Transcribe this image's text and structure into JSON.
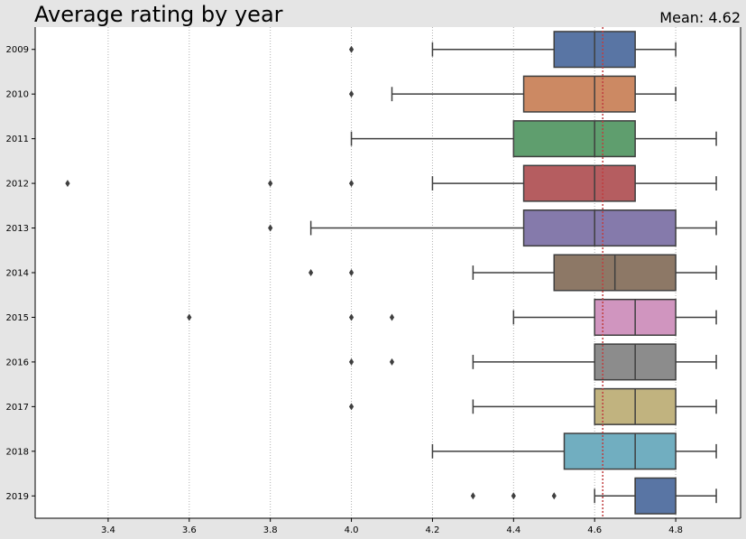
{
  "chart_data": {
    "type": "boxplot",
    "orientation": "horizontal",
    "title": "Average rating by year",
    "mean_label": "Mean: 4.62",
    "mean_value": 4.62,
    "xlabel": "",
    "ylabel": "",
    "xlim": [
      3.22,
      4.96
    ],
    "xticks": [
      3.4,
      3.6,
      3.8,
      4.0,
      4.2,
      4.4,
      4.6,
      4.8
    ],
    "xtick_labels": [
      "3.4",
      "3.6",
      "3.8",
      "4.0",
      "4.2",
      "4.4",
      "4.6",
      "4.8"
    ],
    "grid": "vertical dotted",
    "colors": {
      "background": "#e5e5e5",
      "plot_background": "#ffffff",
      "mean_line": "#c03d3e",
      "edge": "#3f3f3f",
      "grid": "#b0b0b0"
    },
    "categories": [
      "2009",
      "2010",
      "2011",
      "2012",
      "2013",
      "2014",
      "2015",
      "2016",
      "2017",
      "2018",
      "2019"
    ],
    "boxes": [
      {
        "year": "2009",
        "whisker_low": 4.2,
        "q1": 4.5,
        "median": 4.6,
        "q3": 4.7,
        "whisker_high": 4.8,
        "outliers": [
          4.0
        ],
        "color": "#5975a4"
      },
      {
        "year": "2010",
        "whisker_low": 4.1,
        "q1": 4.425,
        "median": 4.6,
        "q3": 4.7,
        "whisker_high": 4.8,
        "outliers": [
          4.0
        ],
        "color": "#cc8963"
      },
      {
        "year": "2011",
        "whisker_low": 4.0,
        "q1": 4.4,
        "median": 4.6,
        "q3": 4.7,
        "whisker_high": 4.9,
        "outliers": [],
        "color": "#5f9e6e"
      },
      {
        "year": "2012",
        "whisker_low": 4.2,
        "q1": 4.425,
        "median": 4.6,
        "q3": 4.7,
        "whisker_high": 4.9,
        "outliers": [
          3.3,
          3.8,
          4.0
        ],
        "color": "#b55d60"
      },
      {
        "year": "2013",
        "whisker_low": 3.9,
        "q1": 4.425,
        "median": 4.6,
        "q3": 4.8,
        "whisker_high": 4.9,
        "outliers": [
          3.8
        ],
        "color": "#857aab"
      },
      {
        "year": "2014",
        "whisker_low": 4.3,
        "q1": 4.5,
        "median": 4.65,
        "q3": 4.8,
        "whisker_high": 4.9,
        "outliers": [
          3.9,
          4.0
        ],
        "color": "#8d7866"
      },
      {
        "year": "2015",
        "whisker_low": 4.4,
        "q1": 4.6,
        "median": 4.7,
        "q3": 4.8,
        "whisker_high": 4.9,
        "outliers": [
          3.6,
          4.0,
          4.1
        ],
        "color": "#d095bf"
      },
      {
        "year": "2016",
        "whisker_low": 4.3,
        "q1": 4.6,
        "median": 4.7,
        "q3": 4.8,
        "whisker_high": 4.9,
        "outliers": [
          4.0,
          4.1
        ],
        "color": "#8c8c8c"
      },
      {
        "year": "2017",
        "whisker_low": 4.3,
        "q1": 4.6,
        "median": 4.7,
        "q3": 4.8,
        "whisker_high": 4.9,
        "outliers": [
          4.0
        ],
        "color": "#c1b37f"
      },
      {
        "year": "2018",
        "whisker_low": 4.2,
        "q1": 4.525,
        "median": 4.7,
        "q3": 4.8,
        "whisker_high": 4.9,
        "outliers": [],
        "color": "#71aec0"
      },
      {
        "year": "2019",
        "whisker_low": 4.6,
        "q1": 4.7,
        "median": 4.7,
        "q3": 4.8,
        "whisker_high": 4.9,
        "outliers": [
          4.3,
          4.4,
          4.5
        ],
        "color": "#5975a4"
      }
    ]
  }
}
